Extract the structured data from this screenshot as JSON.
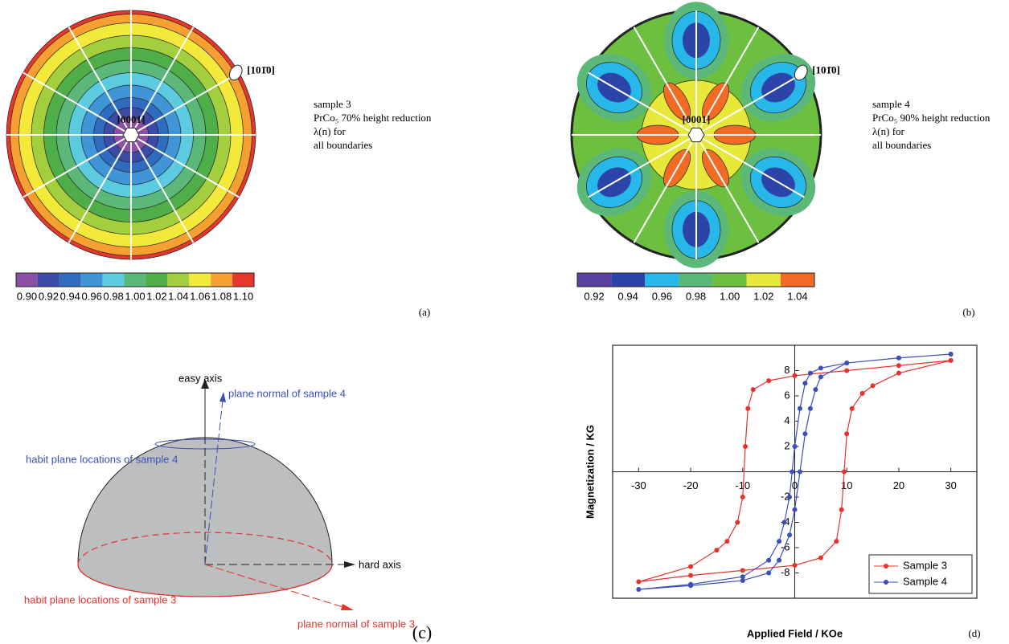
{
  "chart_data": [
    {
      "type": "contour",
      "panel_label": "(a)",
      "direction_labels": [
        "[101̄0]",
        "[0001]"
      ],
      "notes": [
        "sample 3",
        "PrCo₅ 70% height reduction",
        "λ(n) for",
        "all boundaries"
      ],
      "colorbar_lim": [
        0.89,
        1.11
      ],
      "colorbar_ticks": [
        {
          "value": 0.9,
          "label": "0.90"
        },
        0.92,
        0.94,
        0.96,
        0.98,
        {
          "value": 1,
          "label": "1.00"
        },
        1.02,
        1.04,
        1.06,
        1.08,
        {
          "value": 1.1,
          "label": "1.10"
        }
      ],
      "colors": [
        "#8b4fa6",
        "#3c4aa8",
        "#2f6bbf",
        "#3f95d6",
        "#5ccbe0",
        "#5cb878",
        "#4fae48",
        "#a3cf3e",
        "#f2e93a",
        "#f5a030",
        "#e8362a"
      ]
    },
    {
      "type": "contour",
      "panel_label": "(b)",
      "direction_labels": [
        "[101̄0]",
        "[0001]"
      ],
      "notes": [
        "sample 4",
        "PrCo₅ 90% height reduction",
        "λ(n) for",
        "all boundaries"
      ],
      "colorbar_lim": [
        0.91,
        1.05
      ],
      "colorbar_ticks": [
        0.92,
        0.94,
        0.96,
        0.98,
        {
          "value": 1,
          "label": "1.00"
        },
        1.02,
        1.04
      ],
      "colors": [
        "#5a3fa0",
        "#2c44a8",
        "#27b7e8",
        "#5cb878",
        "#6cbf3f",
        "#e8e83a",
        "#f26b25"
      ]
    },
    {
      "type": "diagram",
      "panel_label": "(c)",
      "labels": {
        "easy_axis": "easy axis",
        "hard_axis": "hard axis",
        "normal_4": "plane normal of sample 4",
        "habit_4": "habit plane locations of sample 4",
        "habit_3": "habit plane locations of sample 3",
        "normal_3": "plane normal of sample 3"
      }
    },
    {
      "type": "line",
      "panel_label": "(d)",
      "x_label": "Applied Field / KOe",
      "y_label": "Magnetization / KG",
      "xlim": [
        -35,
        35
      ],
      "ylim": [
        -10,
        10
      ],
      "xticks": [
        -30,
        -20,
        -10,
        0,
        10,
        20,
        30
      ],
      "yticks": [
        -8,
        -6,
        -4,
        -2,
        2,
        4,
        6,
        8
      ],
      "legend": "lower right",
      "series": [
        {
          "name": "Sample 3",
          "color": "#e8312a",
          "x": [
            30,
            20,
            10,
            0,
            -5,
            -8,
            -9,
            -9.5,
            -10,
            -11,
            -13,
            -15,
            -20,
            -30,
            -20,
            -10,
            0,
            5,
            8,
            9,
            9.5,
            10,
            11,
            13,
            15,
            20,
            30
          ],
          "values": [
            8.8,
            8.4,
            8.0,
            7.6,
            7.2,
            6.5,
            5,
            2,
            -2,
            -4,
            -5.5,
            -6.2,
            -7.5,
            -8.7,
            -8.2,
            -7.8,
            -7.4,
            -6.8,
            -5.5,
            -3,
            0,
            3,
            5,
            6.2,
            6.8,
            7.8,
            8.8
          ]
        },
        {
          "name": "Sample 4",
          "color": "#3a4fb8",
          "x": [
            30,
            20,
            10,
            5,
            3,
            2,
            1,
            0,
            -0.5,
            -1,
            -2,
            -3,
            -5,
            -10,
            -20,
            -30,
            -20,
            -10,
            -5,
            -3,
            -1,
            0,
            1,
            2,
            3,
            4,
            5,
            10,
            20,
            30
          ],
          "values": [
            9.3,
            9.0,
            8.6,
            8.2,
            7.8,
            7,
            5,
            2,
            0,
            -2,
            -4,
            -5.5,
            -7,
            -8.3,
            -8.9,
            -9.3,
            -9.0,
            -8.6,
            -8,
            -7,
            -5,
            -3,
            0,
            3,
            5,
            6.5,
            7.5,
            8.6,
            9.0,
            9.3
          ]
        }
      ]
    }
  ]
}
